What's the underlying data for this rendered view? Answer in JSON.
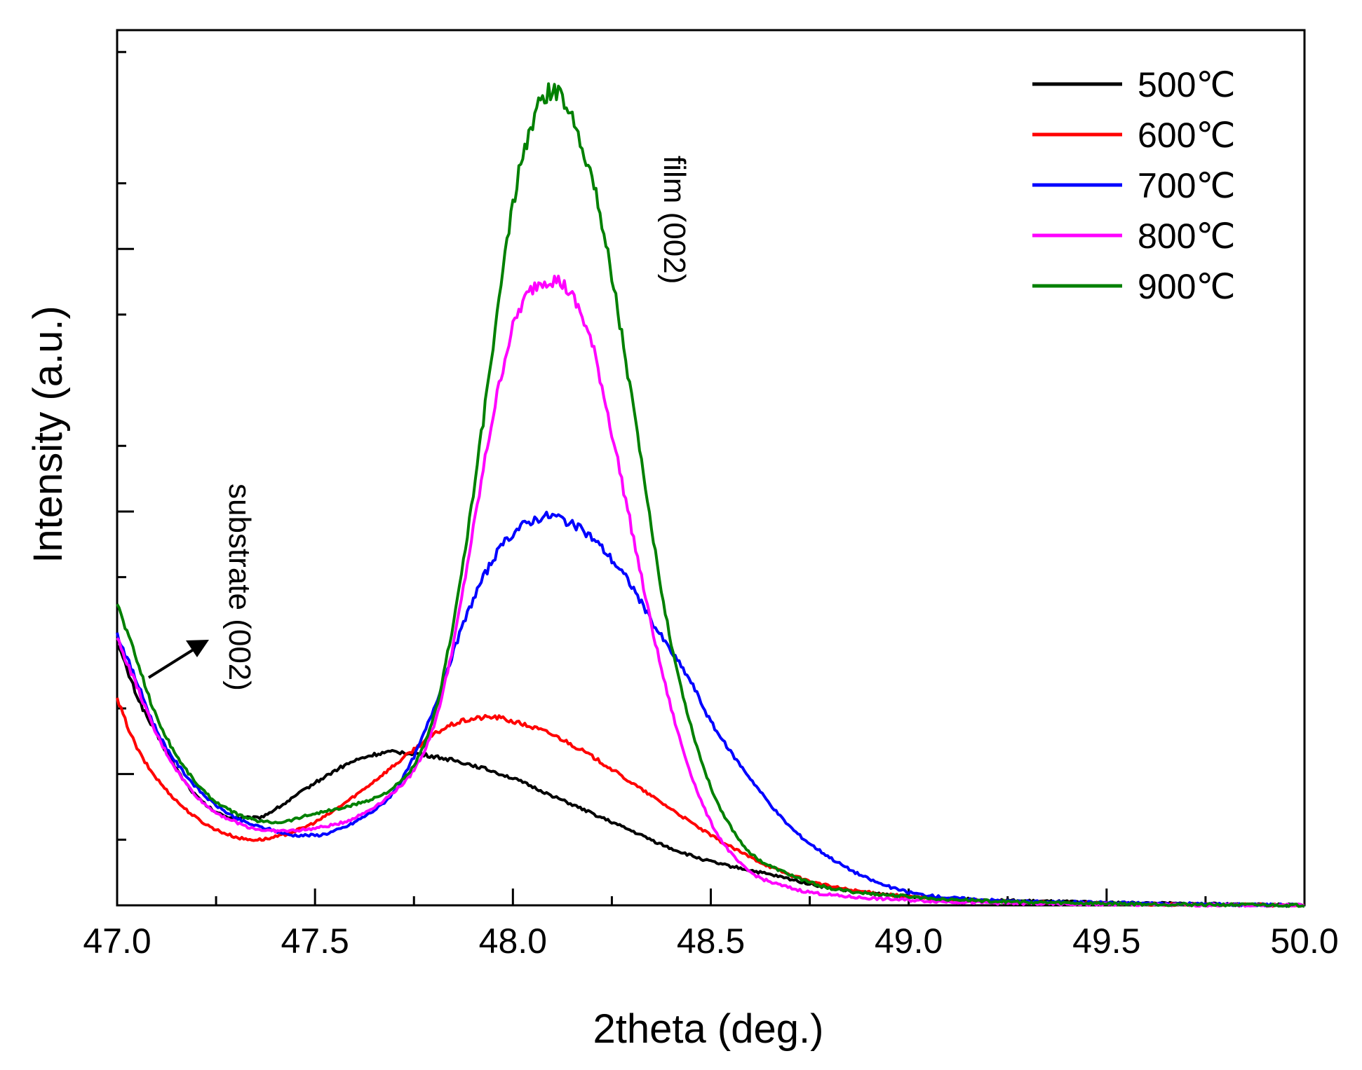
{
  "chart_data": {
    "type": "line",
    "title": "",
    "xlabel": "2theta (deg.)",
    "ylabel": "Intensity (a.u.)",
    "xlim": [
      47.0,
      50.0
    ],
    "ylim": [
      0,
      1000
    ],
    "x_ticks": [
      "47.0",
      "47.5",
      "48.0",
      "48.5",
      "49.0",
      "49.5",
      "50.0"
    ],
    "x_tick_values": [
      47.0,
      47.5,
      48.0,
      48.5,
      49.0,
      49.5,
      50.0
    ],
    "y_major_ticks": [
      150,
      450,
      750,
      1050
    ],
    "y_minor_ticks": [
      75,
      225,
      375,
      525,
      675,
      825,
      975
    ],
    "y_tick_labels_shown": false,
    "legend_position": "top-right",
    "annotations": {
      "substrate": "substrate (002)",
      "film": "film (002)"
    },
    "series": [
      {
        "name": "500℃",
        "color": "#000000",
        "x": [
          47.0,
          47.05,
          47.1,
          47.2,
          47.3,
          47.35,
          47.4,
          47.5,
          47.6,
          47.7,
          47.8,
          47.9,
          48.0,
          48.1,
          48.2,
          48.3,
          48.4,
          48.5,
          48.6,
          48.7,
          48.8,
          49.0,
          49.2,
          49.5,
          50.0
        ],
        "y": [
          300,
          240,
          195,
          125,
          100,
          100,
          110,
          140,
          165,
          175,
          170,
          160,
          145,
          125,
          105,
          85,
          65,
          50,
          40,
          30,
          20,
          10,
          6,
          3,
          0
        ]
      },
      {
        "name": "600℃",
        "color": "#ff0000",
        "x": [
          47.0,
          47.05,
          47.1,
          47.2,
          47.3,
          47.35,
          47.4,
          47.5,
          47.6,
          47.7,
          47.8,
          47.85,
          47.9,
          47.95,
          48.0,
          48.1,
          48.2,
          48.3,
          48.4,
          48.5,
          48.6,
          48.7,
          48.8,
          49.0,
          49.2,
          49.5,
          50.0
        ],
        "y": [
          235,
          180,
          145,
          100,
          78,
          75,
          78,
          95,
          125,
          160,
          195,
          207,
          213,
          215,
          210,
          195,
          170,
          140,
          110,
          80,
          55,
          35,
          22,
          10,
          5,
          2,
          0
        ]
      },
      {
        "name": "700℃",
        "color": "#0000ff",
        "x": [
          47.0,
          47.05,
          47.1,
          47.2,
          47.3,
          47.4,
          47.45,
          47.5,
          47.55,
          47.6,
          47.7,
          47.75,
          47.8,
          47.85,
          47.9,
          47.95,
          48.0,
          48.05,
          48.1,
          48.15,
          48.2,
          48.25,
          48.3,
          48.35,
          48.4,
          48.45,
          48.5,
          48.6,
          48.7,
          48.8,
          48.9,
          49.0,
          49.2,
          49.5,
          50.0
        ],
        "y": [
          310,
          255,
          200,
          135,
          100,
          85,
          80,
          80,
          85,
          95,
          130,
          170,
          225,
          290,
          350,
          395,
          425,
          440,
          445,
          435,
          420,
          395,
          365,
          325,
          290,
          255,
          210,
          145,
          90,
          55,
          30,
          15,
          6,
          3,
          0
        ]
      },
      {
        "name": "800℃",
        "color": "#ff00ff",
        "x": [
          47.0,
          47.05,
          47.1,
          47.2,
          47.3,
          47.4,
          47.5,
          47.6,
          47.7,
          47.75,
          47.8,
          47.85,
          47.9,
          47.95,
          48.0,
          48.05,
          48.1,
          48.15,
          48.2,
          48.25,
          48.3,
          48.35,
          48.4,
          48.45,
          48.5,
          48.55,
          48.6,
          48.7,
          48.8,
          49.0,
          49.2,
          49.5,
          50.0
        ],
        "y": [
          305,
          250,
          195,
          125,
          95,
          85,
          88,
          100,
          130,
          155,
          205,
          300,
          430,
          560,
          660,
          705,
          715,
          695,
          640,
          540,
          430,
          320,
          225,
          150,
          95,
          60,
          38,
          20,
          12,
          6,
          3,
          1,
          0
        ]
      },
      {
        "name": "900℃",
        "color": "#008000",
        "x": [
          47.0,
          47.05,
          47.1,
          47.2,
          47.3,
          47.4,
          47.5,
          47.6,
          47.7,
          47.75,
          47.8,
          47.85,
          47.9,
          47.95,
          48.0,
          48.05,
          48.1,
          48.15,
          48.2,
          48.25,
          48.3,
          48.35,
          48.4,
          48.45,
          48.5,
          48.55,
          48.6,
          48.7,
          48.8,
          49.0,
          49.2,
          49.5,
          50.0
        ],
        "y": [
          345,
          280,
          215,
          140,
          105,
          95,
          105,
          115,
          135,
          160,
          215,
          325,
          470,
          640,
          800,
          895,
          930,
          900,
          830,
          720,
          580,
          430,
          300,
          205,
          135,
          90,
          60,
          35,
          20,
          10,
          5,
          2,
          0
        ]
      }
    ]
  }
}
